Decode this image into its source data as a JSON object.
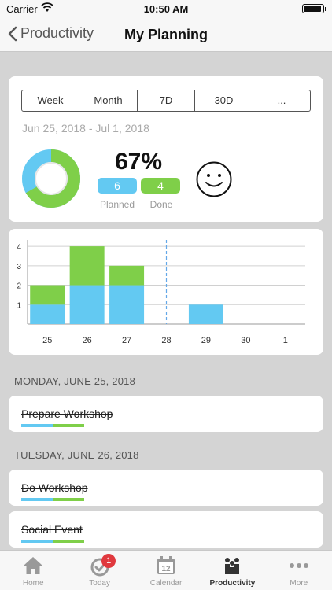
{
  "status_bar": {
    "carrier": "Carrier",
    "time": "10:50 AM"
  },
  "nav": {
    "back_label": "Productivity",
    "title": "My Planning"
  },
  "segments": [
    {
      "label": "Week",
      "active": true
    },
    {
      "label": "Month",
      "active": false
    },
    {
      "label": "7D",
      "active": false
    },
    {
      "label": "30D",
      "active": false
    },
    {
      "label": "...",
      "active": false
    }
  ],
  "summary": {
    "date_range": "Jun 25, 2018 - Jul 1, 2018",
    "percent": "67%",
    "planned_count": "6",
    "done_count": "4",
    "planned_label": "Planned",
    "done_label": "Done",
    "mood_icon": "smiley-face-icon"
  },
  "colors": {
    "planned": "#63c9f2",
    "done": "#7fcf49",
    "accent": "#555555",
    "badge": "#e0393e"
  },
  "chart_data": {
    "type": "bar",
    "stacked": true,
    "categories": [
      "25",
      "26",
      "27",
      "28",
      "29",
      "30",
      "1"
    ],
    "series": [
      {
        "name": "Planned",
        "values": [
          1,
          2,
          2,
          0,
          1,
          0,
          0
        ]
      },
      {
        "name": "Done",
        "values": [
          1,
          2,
          1,
          0,
          0,
          0,
          0
        ]
      }
    ],
    "yticks": [
      1,
      2,
      3,
      4
    ],
    "ylim": [
      0,
      4
    ],
    "today_marker": "28",
    "grid": true
  },
  "sections": [
    {
      "header": "MONDAY, JUNE 25, 2018",
      "tasks": [
        {
          "title": "Prepare Workshop",
          "completed": true
        }
      ]
    },
    {
      "header": "TUESDAY, JUNE 26, 2018",
      "tasks": [
        {
          "title": "Do Workshop",
          "completed": true
        },
        {
          "title": "Social Event",
          "completed": true
        }
      ]
    }
  ],
  "tab_bar": {
    "items": [
      {
        "label": "Home",
        "icon": "home-icon"
      },
      {
        "label": "Today",
        "icon": "today-check-icon",
        "badge": "1"
      },
      {
        "label": "Calendar",
        "icon": "calendar-icon",
        "icon_text": "12"
      },
      {
        "label": "Productivity",
        "icon": "productivity-icon",
        "active": true
      },
      {
        "label": "More",
        "icon": "more-icon"
      }
    ]
  }
}
